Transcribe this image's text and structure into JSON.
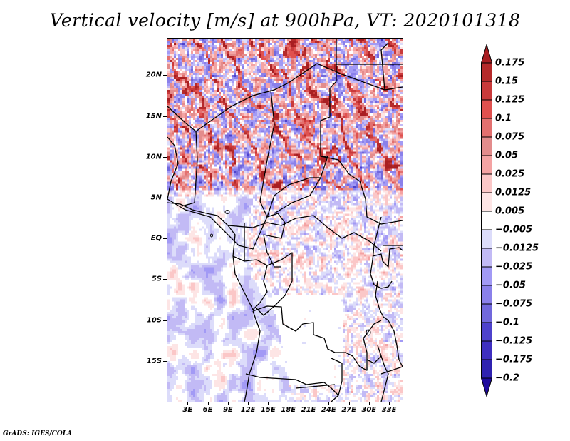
{
  "title": "Vertical velocity [m/s] at 900hPa, VT: 2020101318",
  "credit": "GrADS: IGES/COLA",
  "chart_data": {
    "type": "heatmap",
    "title": "Vertical velocity [m/s] at 900hPa, VT: 2020101318",
    "variable": "Vertical velocity",
    "units": "m/s",
    "level": "900hPa",
    "valid_time": "2020101318",
    "xlabel": "",
    "ylabel": "",
    "lon_range": [
      0,
      35
    ],
    "lat_range": [
      -20,
      24.5
    ],
    "x_ticks": [
      "3E",
      "6E",
      "9E",
      "12E",
      "15E",
      "18E",
      "21E",
      "24E",
      "27E",
      "30E",
      "33E"
    ],
    "x_tick_values": [
      3,
      6,
      9,
      12,
      15,
      18,
      21,
      24,
      27,
      30,
      33
    ],
    "y_ticks": [
      "20N",
      "15N",
      "10N",
      "5N",
      "EQ",
      "5S",
      "10S",
      "15S"
    ],
    "y_tick_values": [
      20,
      15,
      10,
      5,
      0,
      -5,
      -10,
      -15
    ],
    "colorbar": {
      "orientation": "vertical",
      "placement": "right",
      "extend": "both",
      "labels": [
        "0.175",
        "0.15",
        "0.125",
        "0.1",
        "0.075",
        "0.05",
        "0.025",
        "0.0125",
        "0.005",
        "-0.005",
        "-0.0125",
        "-0.025",
        "-0.05",
        "-0.075",
        "-0.1",
        "-0.125",
        "-0.175",
        "-0.2"
      ],
      "levels": [
        0.175,
        0.15,
        0.125,
        0.1,
        0.075,
        0.05,
        0.025,
        0.0125,
        0.005,
        -0.005,
        -0.0125,
        -0.025,
        -0.05,
        -0.075,
        -0.1,
        -0.125,
        -0.175,
        -0.2
      ],
      "colors_top_to_bottom": [
        "#a81e22",
        "#b52a2b",
        "#c93a3b",
        "#e0514f",
        "#e3706f",
        "#e38c8c",
        "#f4a3a3",
        "#fbc7c7",
        "#fde5e5",
        "#ffffff",
        "#dcdcfa",
        "#c2baf5",
        "#a29af5",
        "#8a80ea",
        "#7168dc",
        "#4e42cc",
        "#3f2fc0",
        "#2f22b0",
        "#1e0a9e"
      ]
    },
    "description": "Gridded field over West/Central Africa: strong alternating up/downdraft streaks over the Sahel/Sahara north of ~5N, weaker mixed field over Congo basin, near-zero (white) over southern interior, broad weak negative patches over the South Atlantic."
  }
}
